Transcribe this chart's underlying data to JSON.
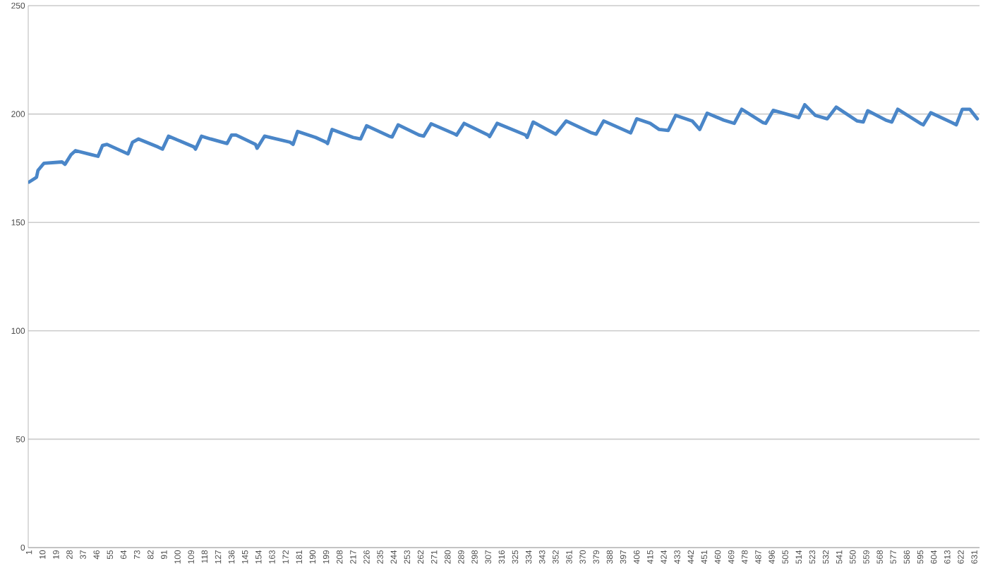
{
  "chart_data": {
    "type": "line",
    "color": "#4a86c8",
    "grid": "y",
    "marker": "none",
    "line_style": "solid",
    "xlim": [
      0.5,
      634.5
    ],
    "ylim": [
      0,
      250
    ],
    "yticks": [
      0,
      50,
      100,
      150,
      200,
      250
    ],
    "xticks": [
      1,
      10,
      19,
      28,
      37,
      46,
      55,
      64,
      73,
      82,
      91,
      100,
      109,
      118,
      127,
      136,
      145,
      154,
      163,
      172,
      181,
      190,
      199,
      208,
      217,
      226,
      235,
      244,
      253,
      262,
      271,
      280,
      289,
      298,
      307,
      316,
      325,
      334,
      343,
      352,
      361,
      370,
      379,
      388,
      397,
      406,
      415,
      424,
      433,
      442,
      451,
      460,
      469,
      478,
      487,
      496,
      505,
      514,
      523,
      532,
      541,
      550,
      559,
      568,
      577,
      586,
      595,
      604,
      613,
      622,
      631
    ],
    "x": [
      1,
      6,
      7,
      11,
      23,
      25,
      29,
      32,
      43,
      47,
      50,
      53,
      67,
      70,
      74,
      87,
      90,
      94,
      111,
      112,
      116,
      122,
      133,
      136,
      139,
      152,
      153,
      158,
      175,
      177,
      180,
      192,
      199,
      200,
      203,
      217,
      222,
      226,
      241,
      243,
      247,
      261,
      264,
      269,
      285,
      286,
      291,
      307,
      308,
      313,
      332,
      333,
      337,
      352,
      359,
      376,
      379,
      384,
      402,
      406,
      415,
      421,
      427,
      432,
      443,
      448,
      453,
      464,
      471,
      476,
      490,
      492,
      497,
      509,
      514,
      518,
      525,
      533,
      539,
      553,
      557,
      560,
      572,
      576,
      580,
      595,
      597,
      602,
      616,
      619,
      623,
      628,
      633
    ],
    "values": [
      168.6,
      170.8,
      174,
      177.3,
      177.9,
      176.8,
      181.2,
      183.1,
      181.2,
      180.5,
      185.5,
      186,
      181.6,
      187,
      188.5,
      184.8,
      183.8,
      189.8,
      184.8,
      183.8,
      189.8,
      188.5,
      186.4,
      190.3,
      190.3,
      186,
      184.2,
      189.8,
      187,
      186,
      192,
      189.2,
      187,
      186.4,
      192.9,
      189.2,
      188.5,
      194.6,
      189.8,
      189.4,
      195,
      190.3,
      189.8,
      195.5,
      190.7,
      190.3,
      195.7,
      190.3,
      189.6,
      195.7,
      190.3,
      189.2,
      196.3,
      190.7,
      196.8,
      191.3,
      190.7,
      196.8,
      191.3,
      197.8,
      195.7,
      192.9,
      192.4,
      199.4,
      196.8,
      192.9,
      200.4,
      197.2,
      195.7,
      202.2,
      196.1,
      195.7,
      201.7,
      199.4,
      198.3,
      204.3,
      199.4,
      197.8,
      203.2,
      196.8,
      196.3,
      201.5,
      197.2,
      196.3,
      202.2,
      195.7,
      195,
      200.6,
      196.1,
      195,
      202.2,
      202.2,
      197.8
    ]
  }
}
